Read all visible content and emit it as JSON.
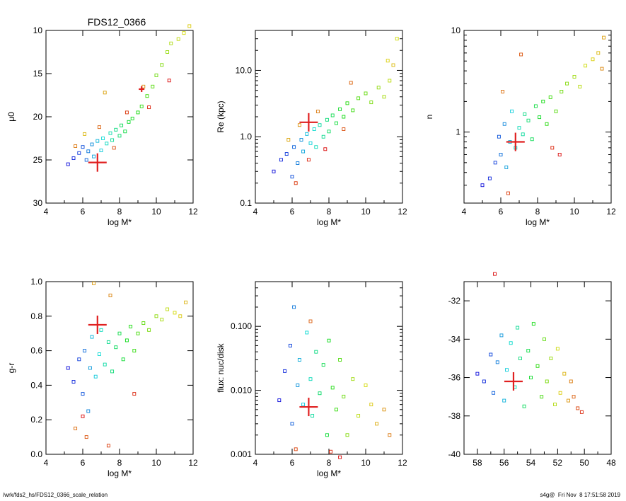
{
  "figure_title": "FDS12_0366",
  "footer_left": "/wrk/fds2_hs/FDS12_0366_scale_relation",
  "footer_right": "s4g@  Fri Nov  8 17:51:58 2019",
  "colors": {
    "marker": "#e02020",
    "axis": "#000000"
  },
  "chart_data": [
    {
      "id": "p1",
      "type": "scatter",
      "xlabel": "log M*",
      "ylabel": "μ0",
      "xlim": [
        4,
        12
      ],
      "ylim": [
        30,
        10
      ],
      "inverted_y": true,
      "log_y": false,
      "xticks": [
        4,
        6,
        8,
        10,
        12
      ],
      "yticks": [
        10,
        15,
        20,
        25,
        30
      ],
      "points": [
        [
          5.2,
          25.5
        ],
        [
          5.5,
          24.8
        ],
        [
          5.8,
          24.2
        ],
        [
          6.0,
          23.5
        ],
        [
          6.2,
          25.0
        ],
        [
          6.3,
          24.0
        ],
        [
          6.5,
          23.2
        ],
        [
          6.6,
          24.6
        ],
        [
          6.8,
          22.8
        ],
        [
          7.0,
          23.9
        ],
        [
          7.1,
          22.5
        ],
        [
          7.3,
          23.1
        ],
        [
          7.5,
          21.9
        ],
        [
          7.6,
          22.7
        ],
        [
          7.8,
          21.5
        ],
        [
          8.0,
          22.2
        ],
        [
          8.1,
          21.0
        ],
        [
          8.3,
          21.7
        ],
        [
          8.5,
          20.6
        ],
        [
          8.7,
          20.2
        ],
        [
          9.0,
          19.5
        ],
        [
          9.2,
          18.8
        ],
        [
          9.5,
          17.6
        ],
        [
          9.8,
          16.5
        ],
        [
          10.0,
          15.2
        ],
        [
          10.3,
          14.0
        ],
        [
          10.6,
          12.5
        ],
        [
          10.8,
          11.5
        ],
        [
          11.2,
          11.0
        ],
        [
          11.5,
          10.3
        ],
        [
          11.8,
          9.5
        ],
        [
          6.1,
          22.0
        ],
        [
          7.2,
          17.2
        ],
        [
          9.3,
          16.5
        ],
        [
          5.6,
          23.4
        ],
        [
          6.9,
          21.2
        ],
        [
          7.7,
          23.6
        ],
        [
          8.4,
          19.5
        ],
        [
          9.6,
          18.9
        ],
        [
          10.7,
          15.8
        ]
      ],
      "highlight": {
        "x": 6.8,
        "y": 25.3
      },
      "highlight2": {
        "x": 9.2,
        "y": 16.8
      }
    },
    {
      "id": "p2",
      "type": "scatter",
      "xlabel": "log M*",
      "ylabel": "Re (kpc)",
      "xlim": [
        4,
        12
      ],
      "ylim": [
        0.1,
        40
      ],
      "log_y": true,
      "xticks": [
        4,
        6,
        8,
        10,
        12
      ],
      "ytick_labels": [
        "0.1",
        "1.0",
        "10.0"
      ],
      "ytick_values": [
        0.1,
        1.0,
        10.0
      ],
      "points": [
        [
          5.0,
          0.3
        ],
        [
          5.4,
          0.45
        ],
        [
          5.7,
          0.55
        ],
        [
          6.0,
          0.25
        ],
        [
          6.1,
          0.7
        ],
        [
          6.3,
          0.4
        ],
        [
          6.5,
          0.9
        ],
        [
          6.6,
          0.6
        ],
        [
          6.8,
          1.1
        ],
        [
          7.0,
          0.8
        ],
        [
          7.2,
          1.3
        ],
        [
          7.3,
          0.7
        ],
        [
          7.5,
          1.5
        ],
        [
          7.7,
          1.0
        ],
        [
          7.9,
          1.8
        ],
        [
          8.0,
          1.2
        ],
        [
          8.2,
          2.1
        ],
        [
          8.4,
          1.6
        ],
        [
          8.6,
          2.6
        ],
        [
          8.8,
          2.0
        ],
        [
          9.0,
          3.2
        ],
        [
          9.3,
          2.5
        ],
        [
          9.6,
          3.8
        ],
        [
          10.0,
          4.5
        ],
        [
          10.3,
          3.3
        ],
        [
          10.7,
          5.5
        ],
        [
          11.0,
          4.0
        ],
        [
          11.3,
          7.0
        ],
        [
          11.7,
          30.0
        ],
        [
          11.2,
          14.0
        ],
        [
          11.5,
          12.0
        ],
        [
          5.8,
          0.9
        ],
        [
          6.4,
          1.5
        ],
        [
          7.4,
          2.4
        ],
        [
          9.2,
          6.5
        ],
        [
          8.8,
          1.3
        ],
        [
          6.2,
          0.2
        ],
        [
          6.9,
          0.45
        ],
        [
          7.8,
          0.65
        ]
      ],
      "highlight": {
        "x": 6.9,
        "y": 1.65
      }
    },
    {
      "id": "p3",
      "type": "scatter",
      "xlabel": "log M*",
      "ylabel": "n",
      "xlim": [
        4,
        12
      ],
      "ylim": [
        0.2,
        10
      ],
      "log_y": true,
      "xticks": [
        4,
        6,
        8,
        10,
        12
      ],
      "ytick_labels": [
        "1",
        "10"
      ],
      "ytick_values": [
        1,
        10
      ],
      "points": [
        [
          5.0,
          0.3
        ],
        [
          5.4,
          0.35
        ],
        [
          5.7,
          0.5
        ],
        [
          5.9,
          0.9
        ],
        [
          6.0,
          0.6
        ],
        [
          6.2,
          1.2
        ],
        [
          6.3,
          0.45
        ],
        [
          6.5,
          0.8
        ],
        [
          6.6,
          1.6
        ],
        [
          6.8,
          0.7
        ],
        [
          7.0,
          1.1
        ],
        [
          7.2,
          0.95
        ],
        [
          7.3,
          1.5
        ],
        [
          7.5,
          1.3
        ],
        [
          7.7,
          0.85
        ],
        [
          7.9,
          1.8
        ],
        [
          8.1,
          1.4
        ],
        [
          8.3,
          2.0
        ],
        [
          8.5,
          1.2
        ],
        [
          8.7,
          2.2
        ],
        [
          9.0,
          1.6
        ],
        [
          9.3,
          2.5
        ],
        [
          9.6,
          3.0
        ],
        [
          10.0,
          3.5
        ],
        [
          10.3,
          2.8
        ],
        [
          10.6,
          4.5
        ],
        [
          11.0,
          5.2
        ],
        [
          11.3,
          6.0
        ],
        [
          11.6,
          8.5
        ],
        [
          11.5,
          4.2
        ],
        [
          6.1,
          2.5
        ],
        [
          7.1,
          5.8
        ],
        [
          6.4,
          0.25
        ],
        [
          8.8,
          0.7
        ],
        [
          9.2,
          0.6
        ]
      ],
      "highlight": {
        "x": 6.8,
        "y": 0.8
      }
    },
    {
      "id": "p4",
      "type": "scatter",
      "xlabel": "log M*",
      "ylabel": "g-r",
      "xlim": [
        4,
        12
      ],
      "ylim": [
        0.0,
        1.0
      ],
      "log_y": false,
      "xticks": [
        4,
        6,
        8,
        10,
        12
      ],
      "ytick_labels": [
        "0.0",
        "0.2",
        "0.4",
        "0.6",
        "0.8",
        "1.0"
      ],
      "ytick_values": [
        0.0,
        0.2,
        0.4,
        0.6,
        0.8,
        1.0
      ],
      "points": [
        [
          5.2,
          0.5
        ],
        [
          5.5,
          0.42
        ],
        [
          5.8,
          0.55
        ],
        [
          6.0,
          0.35
        ],
        [
          6.1,
          0.6
        ],
        [
          6.3,
          0.25
        ],
        [
          6.4,
          0.5
        ],
        [
          6.5,
          0.68
        ],
        [
          6.7,
          0.45
        ],
        [
          6.9,
          0.58
        ],
        [
          7.0,
          0.72
        ],
        [
          7.2,
          0.52
        ],
        [
          7.4,
          0.65
        ],
        [
          7.6,
          0.48
        ],
        [
          7.8,
          0.62
        ],
        [
          8.0,
          0.7
        ],
        [
          8.2,
          0.55
        ],
        [
          8.4,
          0.66
        ],
        [
          8.6,
          0.74
        ],
        [
          8.8,
          0.6
        ],
        [
          9.0,
          0.7
        ],
        [
          9.3,
          0.76
        ],
        [
          9.6,
          0.72
        ],
        [
          10.0,
          0.8
        ],
        [
          10.3,
          0.78
        ],
        [
          10.6,
          0.84
        ],
        [
          11.0,
          0.82
        ],
        [
          11.3,
          0.8
        ],
        [
          11.6,
          0.88
        ],
        [
          6.6,
          0.99
        ],
        [
          7.5,
          0.92
        ],
        [
          5.6,
          0.15
        ],
        [
          6.2,
          0.1
        ],
        [
          7.4,
          0.05
        ],
        [
          8.8,
          0.35
        ],
        [
          6.0,
          0.22
        ]
      ],
      "highlight": {
        "x": 6.8,
        "y": 0.75
      }
    },
    {
      "id": "p5",
      "type": "scatter",
      "xlabel": "log M*",
      "ylabel": "flux: nuc/disk",
      "xlim": [
        4,
        12
      ],
      "ylim": [
        0.001,
        0.5
      ],
      "log_y": true,
      "xticks": [
        4,
        6,
        8,
        10,
        12
      ],
      "ytick_labels": [
        "0.001",
        "0.010",
        "0.100"
      ],
      "ytick_values": [
        0.001,
        0.01,
        0.1
      ],
      "points": [
        [
          5.3,
          0.007
        ],
        [
          5.6,
          0.02
        ],
        [
          5.9,
          0.05
        ],
        [
          6.0,
          0.003
        ],
        [
          6.1,
          0.2
        ],
        [
          6.3,
          0.012
        ],
        [
          6.4,
          0.03
        ],
        [
          6.6,
          0.006
        ],
        [
          6.8,
          0.08
        ],
        [
          7.0,
          0.015
        ],
        [
          7.1,
          0.004
        ],
        [
          7.3,
          0.04
        ],
        [
          7.5,
          0.009
        ],
        [
          7.7,
          0.025
        ],
        [
          7.9,
          0.002
        ],
        [
          8.0,
          0.06
        ],
        [
          8.2,
          0.011
        ],
        [
          8.4,
          0.005
        ],
        [
          8.6,
          0.03
        ],
        [
          8.8,
          0.008
        ],
        [
          9.0,
          0.002
        ],
        [
          9.3,
          0.015
        ],
        [
          9.6,
          0.004
        ],
        [
          10.0,
          0.012
        ],
        [
          10.3,
          0.006
        ],
        [
          10.6,
          0.003
        ],
        [
          11.0,
          0.005
        ],
        [
          11.3,
          0.002
        ],
        [
          7.0,
          0.12
        ],
        [
          6.2,
          0.0012
        ],
        [
          8.1,
          0.0011
        ],
        [
          8.6,
          0.0009
        ]
      ],
      "highlight": {
        "x": 6.9,
        "y": 0.0055
      }
    },
    {
      "id": "p6",
      "type": "scatter",
      "xlabel": "",
      "ylabel": "",
      "xlim": [
        59,
        48
      ],
      "ylim": [
        -40,
        -31
      ],
      "log_y": false,
      "xticks": [
        58,
        56,
        54,
        52,
        50,
        48
      ],
      "yticks": [
        -40,
        -38,
        -36,
        -34,
        -32
      ],
      "points": [
        [
          58.0,
          -35.8
        ],
        [
          57.5,
          -36.2
        ],
        [
          57.0,
          -34.8
        ],
        [
          56.8,
          -36.8
        ],
        [
          56.5,
          -35.2
        ],
        [
          56.2,
          -33.8
        ],
        [
          56.0,
          -37.2
        ],
        [
          55.8,
          -35.6
        ],
        [
          55.5,
          -34.2
        ],
        [
          55.2,
          -36.5
        ],
        [
          55.0,
          -33.4
        ],
        [
          54.8,
          -35.0
        ],
        [
          54.5,
          -37.5
        ],
        [
          54.2,
          -34.6
        ],
        [
          54.0,
          -36.0
        ],
        [
          53.8,
          -33.2
        ],
        [
          53.5,
          -35.4
        ],
        [
          53.2,
          -37.0
        ],
        [
          53.0,
          -34.0
        ],
        [
          52.8,
          -36.2
        ],
        [
          52.5,
          -35.0
        ],
        [
          52.2,
          -37.4
        ],
        [
          52.0,
          -34.5
        ],
        [
          51.8,
          -36.8
        ],
        [
          51.5,
          -35.8
        ],
        [
          51.2,
          -37.2
        ],
        [
          51.0,
          -36.2
        ],
        [
          50.8,
          -37.0
        ],
        [
          50.5,
          -37.6
        ],
        [
          50.2,
          -37.8
        ],
        [
          56.7,
          -30.6
        ]
      ],
      "highlight": {
        "x": 55.3,
        "y": -36.2
      }
    }
  ]
}
